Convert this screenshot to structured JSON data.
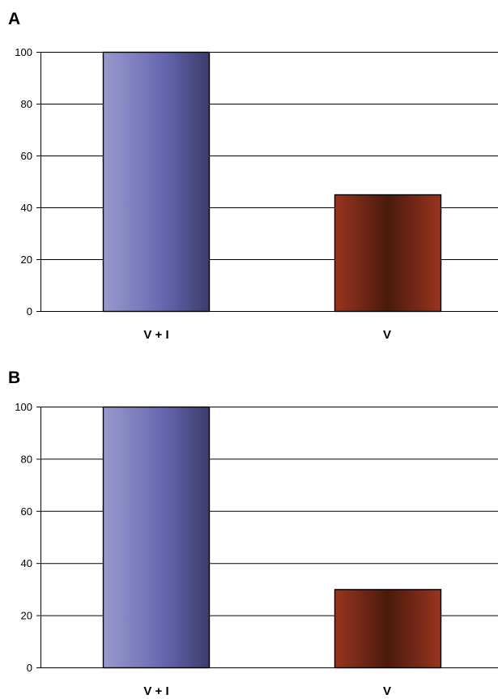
{
  "chart_data": [
    {
      "panel": "A",
      "type": "bar",
      "categories": [
        "V + I",
        "V"
      ],
      "values": [
        100,
        45
      ],
      "ylim": [
        0,
        100
      ],
      "yticks": [
        0,
        20,
        40,
        60,
        80,
        100
      ],
      "grid": true,
      "colors": [
        "#6a6ab4",
        "#7a2a18"
      ]
    },
    {
      "panel": "B",
      "type": "bar",
      "categories": [
        "V + I",
        "V"
      ],
      "values": [
        100,
        30
      ],
      "ylim": [
        0,
        100
      ],
      "yticks": [
        0,
        20,
        40,
        60,
        80,
        100
      ],
      "grid": true,
      "colors": [
        "#6a6ab4",
        "#7a2a18"
      ]
    }
  ]
}
